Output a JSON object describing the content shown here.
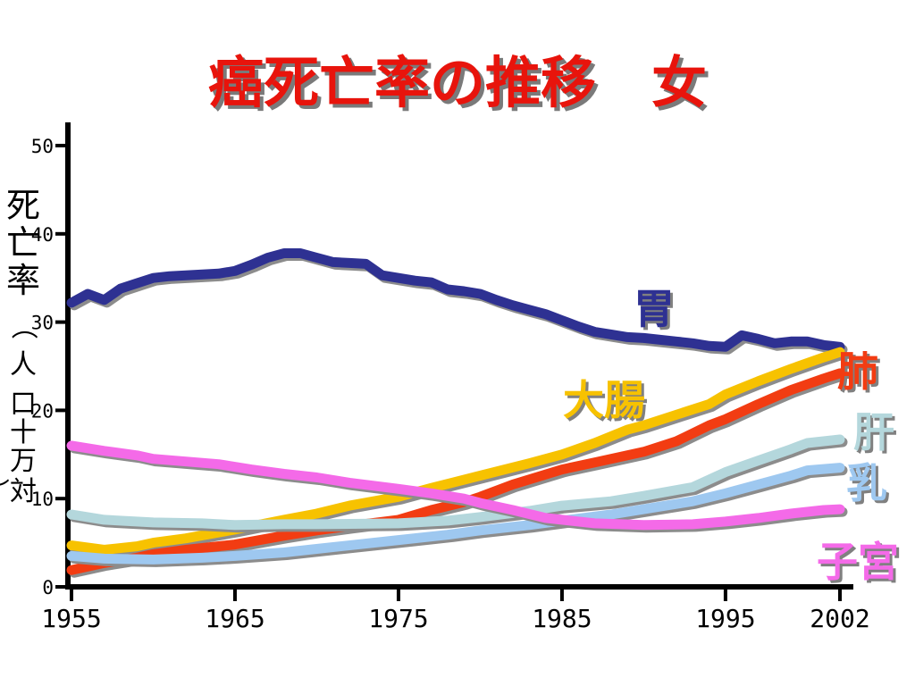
{
  "title": "癌死亡率の推移　女",
  "y_axis_label": "死亡率（人口十万対）",
  "colors": {
    "title": "#e8140c",
    "胃": "#2e3192",
    "大腸": "#f7c200",
    "肺": "#f23c12",
    "肝": "#b4d7dc",
    "乳": "#9ec8f0",
    "子宮": "#f46ae8"
  },
  "chart_data": {
    "type": "line",
    "title": "癌死亡率の推移　女",
    "ylabel": "死亡率（人口十万対）",
    "xlabel": "",
    "xlim": [
      1955,
      2002
    ],
    "ylim": [
      0,
      50
    ],
    "x_ticks": [
      "1955",
      "1965",
      "1975",
      "1985",
      "1995",
      "2002"
    ],
    "y_ticks": [
      "0",
      "10",
      "20",
      "30",
      "40",
      "50"
    ],
    "grid": false,
    "legend": "labels placed next to lines",
    "series": [
      {
        "name": "胃",
        "color": "#2e3192",
        "x": [
          1955,
          1956,
          1957,
          1958,
          1959,
          1960,
          1961,
          1962,
          1963,
          1964,
          1965,
          1966,
          1967,
          1968,
          1969,
          1970,
          1971,
          1972,
          1973,
          1974,
          1975,
          1976,
          1977,
          1978,
          1979,
          1980,
          1981,
          1982,
          1983,
          1984,
          1985,
          1986,
          1987,
          1988,
          1989,
          1990,
          1991,
          1992,
          1993,
          1994,
          1995,
          1996,
          1997,
          1998,
          1999,
          2000,
          2001,
          2002
        ],
        "y": [
          32.2,
          33.2,
          32.5,
          33.8,
          34.4,
          35.0,
          35.2,
          35.3,
          35.4,
          35.5,
          35.8,
          36.5,
          37.3,
          37.8,
          37.8,
          37.3,
          36.8,
          36.7,
          36.6,
          35.3,
          35.0,
          34.7,
          34.5,
          33.7,
          33.5,
          33.2,
          32.5,
          31.9,
          31.4,
          30.9,
          30.2,
          29.5,
          28.9,
          28.6,
          28.3,
          28.2,
          28.0,
          27.8,
          27.6,
          27.3,
          27.2,
          28.5,
          28.1,
          27.6,
          27.8,
          27.8,
          27.4,
          27.2
        ]
      },
      {
        "name": "大腸",
        "color": "#f7c200",
        "x": [
          1955,
          1957,
          1959,
          1960,
          1962,
          1965,
          1968,
          1970,
          1972,
          1975,
          1977,
          1980,
          1983,
          1985,
          1987,
          1989,
          1990,
          1992,
          1994,
          1995,
          1997,
          1999,
          2001,
          2002
        ],
        "y": [
          4.7,
          4.2,
          4.6,
          5.0,
          5.5,
          6.5,
          7.6,
          8.3,
          9.2,
          10.2,
          11.2,
          12.6,
          14.0,
          15.0,
          16.3,
          17.8,
          18.3,
          19.5,
          20.7,
          21.8,
          23.3,
          24.7,
          26.0,
          26.6
        ]
      },
      {
        "name": "肺",
        "color": "#f23c12",
        "x": [
          1955,
          1957,
          1959,
          1960,
          1962,
          1965,
          1968,
          1970,
          1972,
          1975,
          1977,
          1979,
          1980,
          1982,
          1985,
          1987,
          1989,
          1990,
          1992,
          1994,
          1995,
          1997,
          1999,
          2001,
          2002
        ],
        "y": [
          1.9,
          2.7,
          3.3,
          3.7,
          4.2,
          4.8,
          5.8,
          6.4,
          6.9,
          7.6,
          8.7,
          9.6,
          10.2,
          11.6,
          13.3,
          14.1,
          14.9,
          15.3,
          16.5,
          18.3,
          19.0,
          20.7,
          22.3,
          23.6,
          24.2
        ]
      },
      {
        "name": "肝",
        "color": "#b4d7dc",
        "x": [
          1955,
          1957,
          1960,
          1963,
          1965,
          1968,
          1970,
          1975,
          1978,
          1980,
          1983,
          1985,
          1988,
          1990,
          1993,
          1995,
          1997,
          1999,
          2000,
          2002
        ],
        "y": [
          8.2,
          7.6,
          7.3,
          7.2,
          7.0,
          7.1,
          7.1,
          7.2,
          7.5,
          7.9,
          8.6,
          9.2,
          9.7,
          10.3,
          11.3,
          13.0,
          14.3,
          15.6,
          16.3,
          16.7
        ]
      },
      {
        "name": "乳",
        "color": "#9ec8f0",
        "x": [
          1955,
          1957,
          1960,
          1963,
          1965,
          1968,
          1970,
          1975,
          1978,
          1980,
          1983,
          1985,
          1988,
          1990,
          1993,
          1995,
          1997,
          1999,
          2000,
          2002
        ],
        "y": [
          3.5,
          3.2,
          3.1,
          3.3,
          3.5,
          3.9,
          4.3,
          5.3,
          5.9,
          6.4,
          7.0,
          7.5,
          8.2,
          8.8,
          9.7,
          10.6,
          11.6,
          12.6,
          13.2,
          13.5
        ]
      },
      {
        "name": "子宮",
        "color": "#f46ae8",
        "x": [
          1955,
          1957,
          1959,
          1960,
          1962,
          1964,
          1966,
          1968,
          1970,
          1972,
          1975,
          1977,
          1979,
          1980,
          1982,
          1984,
          1985,
          1987,
          1990,
          1993,
          1995,
          1997,
          1999,
          2001,
          2002
        ],
        "y": [
          16.0,
          15.4,
          14.9,
          14.5,
          14.2,
          13.9,
          13.3,
          12.8,
          12.4,
          11.8,
          11.1,
          10.6,
          10.0,
          9.5,
          8.7,
          7.8,
          7.6,
          7.2,
          7.0,
          7.1,
          7.4,
          7.8,
          8.3,
          8.7,
          8.8
        ]
      }
    ]
  }
}
